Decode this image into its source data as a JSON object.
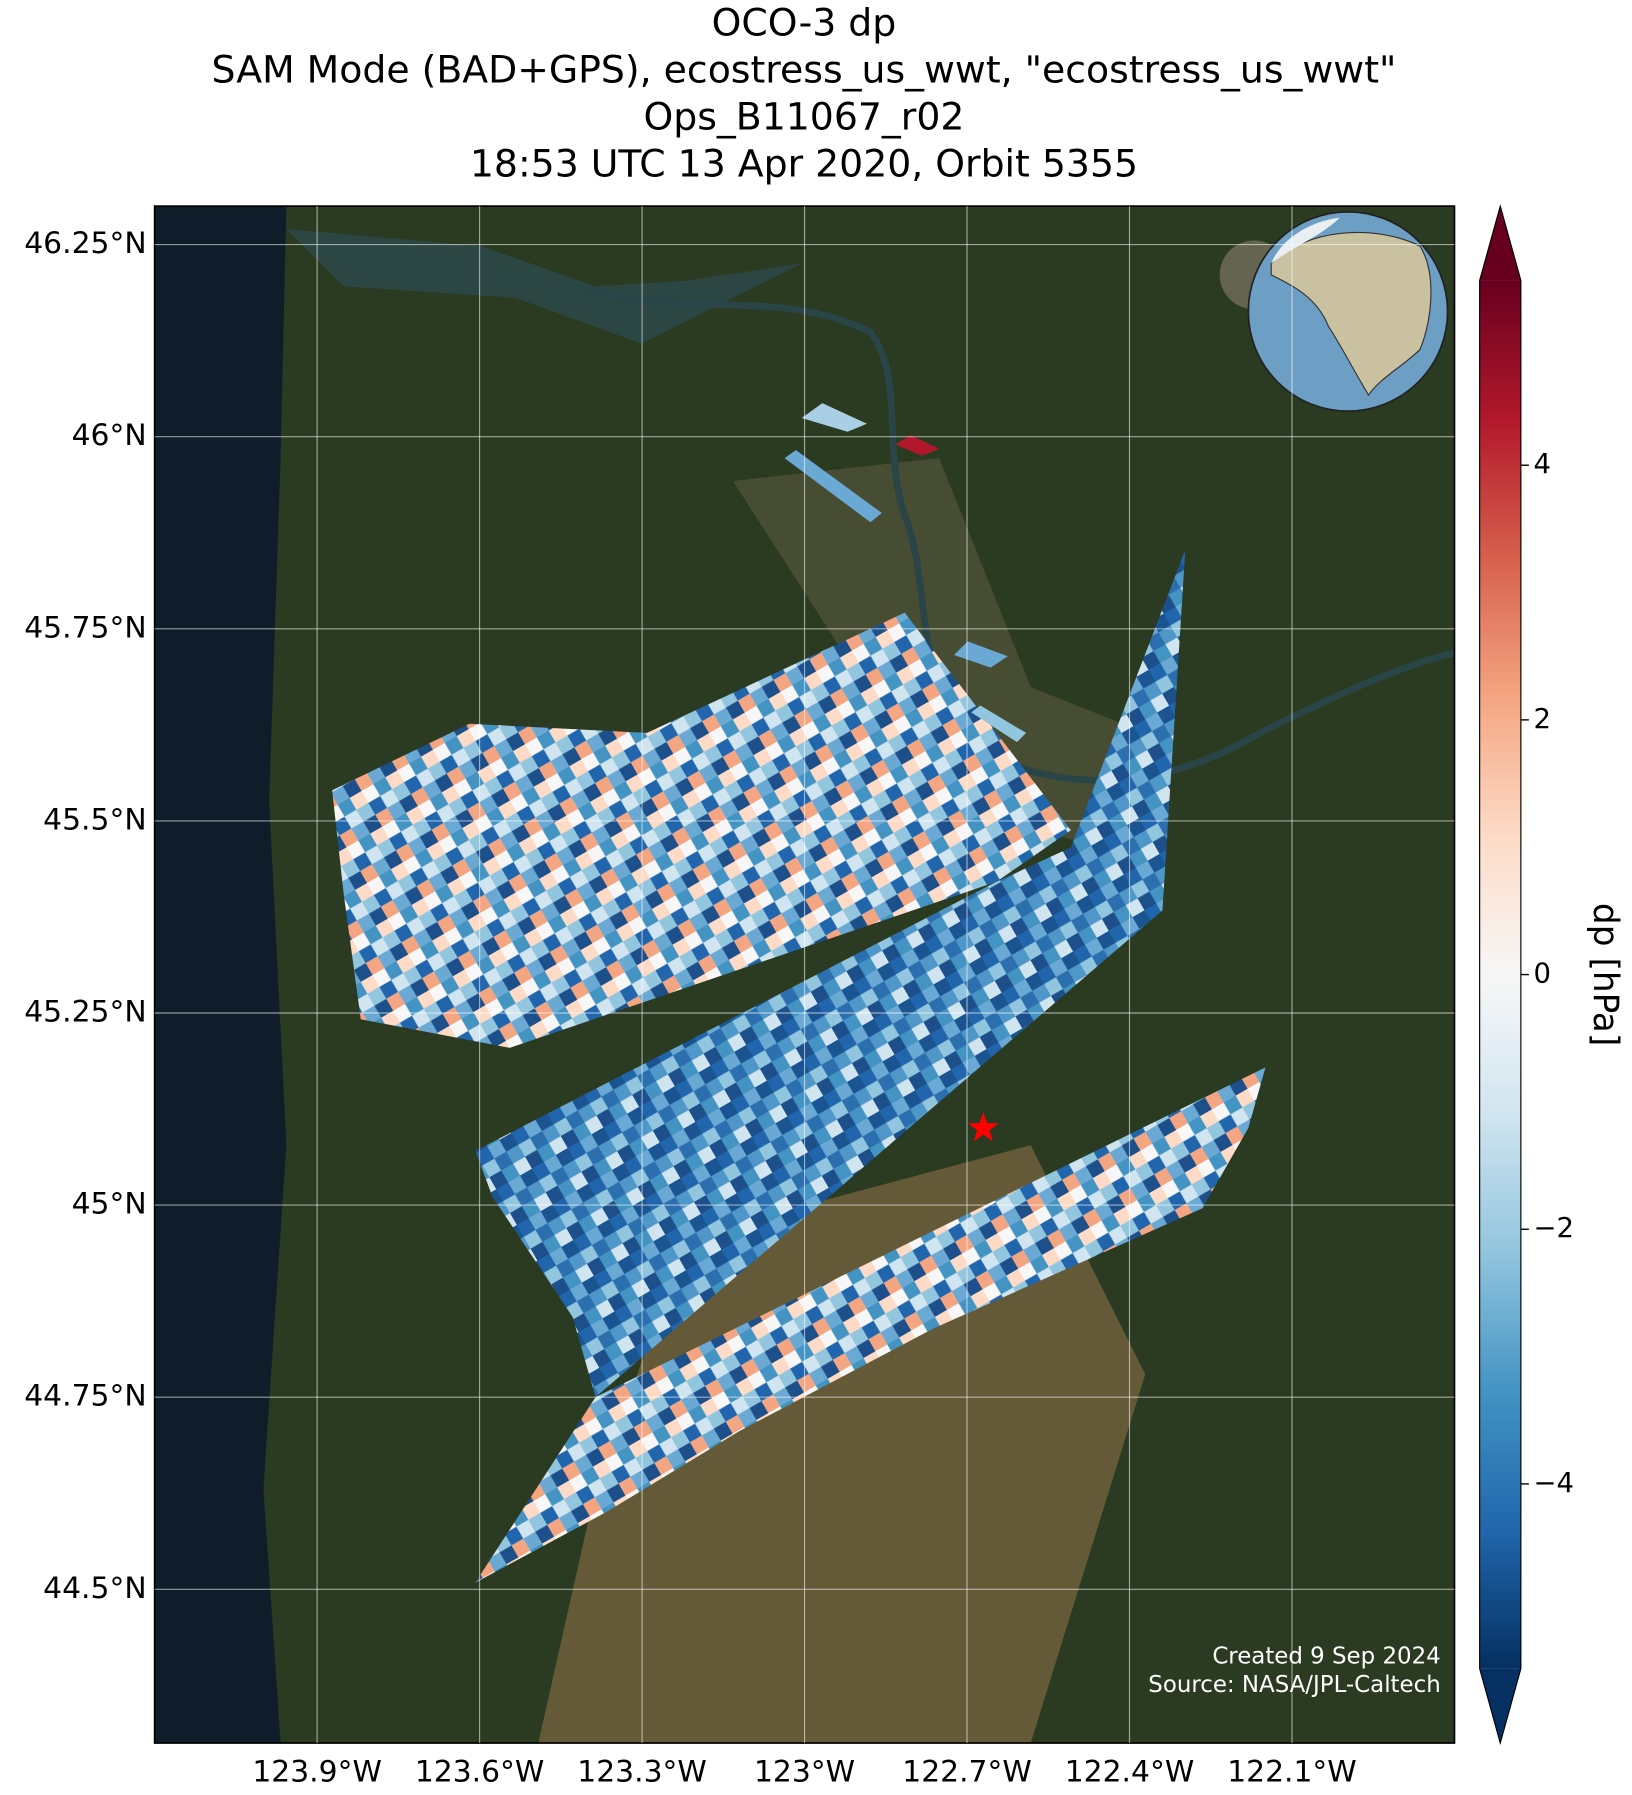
{
  "chart_data": {
    "type": "map",
    "title": [
      "OCO-3 dp",
      "SAM Mode (BAD+GPS), ecostress_us_wwt, \"ecostress_us_wwt\"",
      "Ops_B11067_r02",
      "18:53 UTC 13 Apr 2020, Orbit 5355"
    ],
    "xlim": [
      -124.2,
      -121.8
    ],
    "ylim": [
      44.3,
      46.3
    ],
    "xticks": [
      {
        "value": -123.9,
        "label": "123.9°W"
      },
      {
        "value": -123.6,
        "label": "123.6°W"
      },
      {
        "value": -123.3,
        "label": "123.3°W"
      },
      {
        "value": -123.0,
        "label": "123°W"
      },
      {
        "value": -122.7,
        "label": "122.7°W"
      },
      {
        "value": -122.4,
        "label": "122.4°W"
      },
      {
        "value": -122.1,
        "label": "122.1°W"
      }
    ],
    "yticks": [
      {
        "value": 44.5,
        "label": "44.5°N"
      },
      {
        "value": 44.75,
        "label": "44.75°N"
      },
      {
        "value": 45.0,
        "label": "45°N"
      },
      {
        "value": 45.25,
        "label": "45.25°N"
      },
      {
        "value": 45.5,
        "label": "45.5°N"
      },
      {
        "value": 45.75,
        "label": "45.75°N"
      },
      {
        "value": 46.0,
        "label": "46°N"
      },
      {
        "value": 46.25,
        "label": "46.25°N"
      }
    ],
    "grid": true,
    "target": {
      "lon": -122.67,
      "lat": 45.1,
      "color": "#ff0000"
    },
    "colorbar": {
      "label": "dp [hPa]",
      "colormap": "RdBu_r",
      "clim": [
        -5.45,
        5.45
      ],
      "ticks": [
        {
          "value": -4,
          "label": "−4"
        },
        {
          "value": -2,
          "label": "−2"
        },
        0,
        2,
        4
      ]
    },
    "footnote": [
      "Created 9 Sep 2024",
      "Source: NASA/JPL-Caltech"
    ]
  }
}
